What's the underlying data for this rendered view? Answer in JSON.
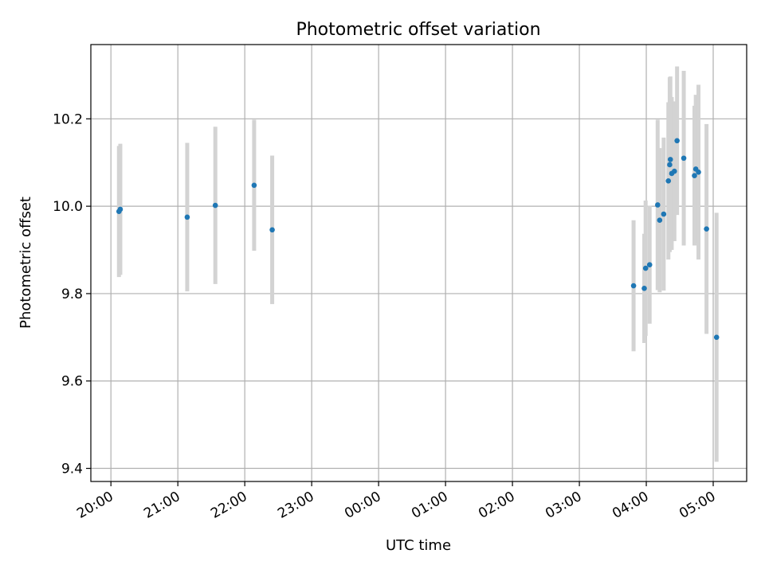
{
  "chart_data": {
    "type": "scatter",
    "title": "Photometric offset variation",
    "xlabel": "UTC time",
    "ylabel": "Photometric offset",
    "xlim": [
      19.7,
      29.5
    ],
    "ylim": [
      9.37,
      10.37
    ],
    "grid": true,
    "x_ticks": [
      {
        "value": 20,
        "label": "20:00"
      },
      {
        "value": 21,
        "label": "21:00"
      },
      {
        "value": 22,
        "label": "22:00"
      },
      {
        "value": 23,
        "label": "23:00"
      },
      {
        "value": 24,
        "label": "00:00"
      },
      {
        "value": 25,
        "label": "01:00"
      },
      {
        "value": 26,
        "label": "02:00"
      },
      {
        "value": 27,
        "label": "03:00"
      },
      {
        "value": 28,
        "label": "04:00"
      },
      {
        "value": 29,
        "label": "05:00"
      }
    ],
    "y_ticks": [
      {
        "value": 9.4,
        "label": "9.4"
      },
      {
        "value": 9.6,
        "label": "9.6"
      },
      {
        "value": 9.8,
        "label": "9.8"
      },
      {
        "value": 10.0,
        "label": "10.0"
      },
      {
        "value": 10.2,
        "label": "10.2"
      }
    ],
    "series": [
      {
        "marker_color": "#1f77b4",
        "error_color": "#d3d3d3",
        "points": [
          {
            "x": 20.12,
            "y": 9.988,
            "err": 0.15
          },
          {
            "x": 20.14,
            "y": 9.993,
            "err": 0.15
          },
          {
            "x": 21.14,
            "y": 9.975,
            "err": 0.17
          },
          {
            "x": 21.56,
            "y": 10.002,
            "err": 0.18
          },
          {
            "x": 22.14,
            "y": 10.048,
            "err": 0.15
          },
          {
            "x": 22.41,
            "y": 9.946,
            "err": 0.17
          },
          {
            "x": 27.81,
            "y": 9.818,
            "err": 0.15
          },
          {
            "x": 27.97,
            "y": 9.812,
            "err": 0.125
          },
          {
            "x": 27.99,
            "y": 9.858,
            "err": 0.155
          },
          {
            "x": 28.05,
            "y": 9.866,
            "err": 0.135
          },
          {
            "x": 28.17,
            "y": 10.003,
            "err": 0.195
          },
          {
            "x": 28.2,
            "y": 9.968,
            "err": 0.165
          },
          {
            "x": 28.26,
            "y": 9.982,
            "err": 0.175
          },
          {
            "x": 28.33,
            "y": 10.058,
            "err": 0.18
          },
          {
            "x": 28.35,
            "y": 10.095,
            "err": 0.2
          },
          {
            "x": 28.36,
            "y": 10.107,
            "err": 0.19
          },
          {
            "x": 28.38,
            "y": 10.075,
            "err": 0.175
          },
          {
            "x": 28.42,
            "y": 10.08,
            "err": 0.16
          },
          {
            "x": 28.46,
            "y": 10.15,
            "err": 0.17
          },
          {
            "x": 28.56,
            "y": 10.11,
            "err": 0.2
          },
          {
            "x": 28.72,
            "y": 10.07,
            "err": 0.16
          },
          {
            "x": 28.74,
            "y": 10.085,
            "err": 0.17
          },
          {
            "x": 28.78,
            "y": 10.078,
            "err": 0.2
          },
          {
            "x": 28.9,
            "y": 9.948,
            "err": 0.24
          },
          {
            "x": 29.05,
            "y": 9.7,
            "err": 0.285
          }
        ]
      }
    ]
  }
}
